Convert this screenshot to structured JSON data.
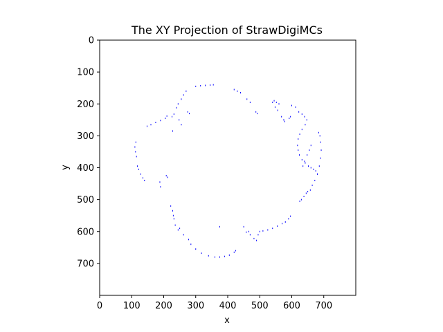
{
  "chart_data": {
    "type": "scatter",
    "title": "The XY Projection of StrawDigiMCs",
    "xlabel": "x",
    "ylabel": "y",
    "xlim": [
      0,
      800
    ],
    "ylim": [
      800,
      0
    ],
    "y_inverted": true,
    "xticks": [
      0,
      100,
      200,
      300,
      400,
      500,
      600,
      700
    ],
    "yticks": [
      0,
      100,
      200,
      300,
      400,
      500,
      600,
      700
    ],
    "grid": false,
    "marker_color": "#0000ff",
    "x": [
      300,
      315,
      330,
      345,
      355,
      270,
      262,
      255,
      245,
      240,
      275,
      280,
      232,
      226,
      210,
      205,
      190,
      175,
      160,
      148,
      113,
      110,
      112,
      115,
      118,
      122,
      128,
      135,
      140,
      188,
      190,
      208,
      212,
      222,
      228,
      230,
      232,
      236,
      245,
      250,
      262,
      278,
      285,
      300,
      318,
      340,
      360,
      375,
      390,
      405,
      420,
      425,
      375,
      450,
      458,
      466,
      470,
      482,
      490,
      495,
      500,
      510,
      525,
      540,
      555,
      570,
      580,
      590,
      596,
      545,
      552,
      560,
      600,
      612,
      622,
      632,
      640,
      647,
      642,
      632,
      625,
      620,
      618,
      620,
      624,
      632,
      642,
      652,
      660,
      668,
      675,
      680,
      684,
      688,
      690,
      692,
      690,
      686,
      680,
      672,
      664,
      658,
      650,
      645,
      638,
      630,
      625,
      660,
      655,
      648,
      640,
      635,
      420,
      430,
      440,
      460,
      470,
      488,
      492,
      540,
      548,
      556,
      568,
      575,
      578,
      592,
      596,
      248,
      255,
      228
    ],
    "y": [
      145,
      143,
      142,
      141,
      140,
      160,
      172,
      185,
      200,
      212,
      225,
      230,
      232,
      240,
      238,
      245,
      252,
      258,
      265,
      270,
      320,
      335,
      350,
      365,
      395,
      405,
      420,
      432,
      440,
      445,
      460,
      425,
      430,
      520,
      535,
      550,
      560,
      580,
      595,
      590,
      610,
      625,
      640,
      655,
      668,
      676,
      680,
      680,
      678,
      674,
      665,
      660,
      585,
      585,
      602,
      600,
      610,
      622,
      628,
      610,
      600,
      598,
      595,
      590,
      583,
      575,
      570,
      560,
      552,
      190,
      195,
      200,
      205,
      210,
      225,
      232,
      240,
      250,
      265,
      280,
      295,
      310,
      330,
      345,
      360,
      375,
      385,
      395,
      400,
      405,
      410,
      420,
      290,
      300,
      320,
      345,
      370,
      395,
      420,
      440,
      455,
      470,
      475,
      480,
      490,
      500,
      505,
      330,
      345,
      360,
      380,
      395,
      155,
      160,
      165,
      185,
      195,
      225,
      230,
      195,
      210,
      220,
      240,
      250,
      255,
      245,
      240,
      250,
      265,
      285
    ]
  }
}
